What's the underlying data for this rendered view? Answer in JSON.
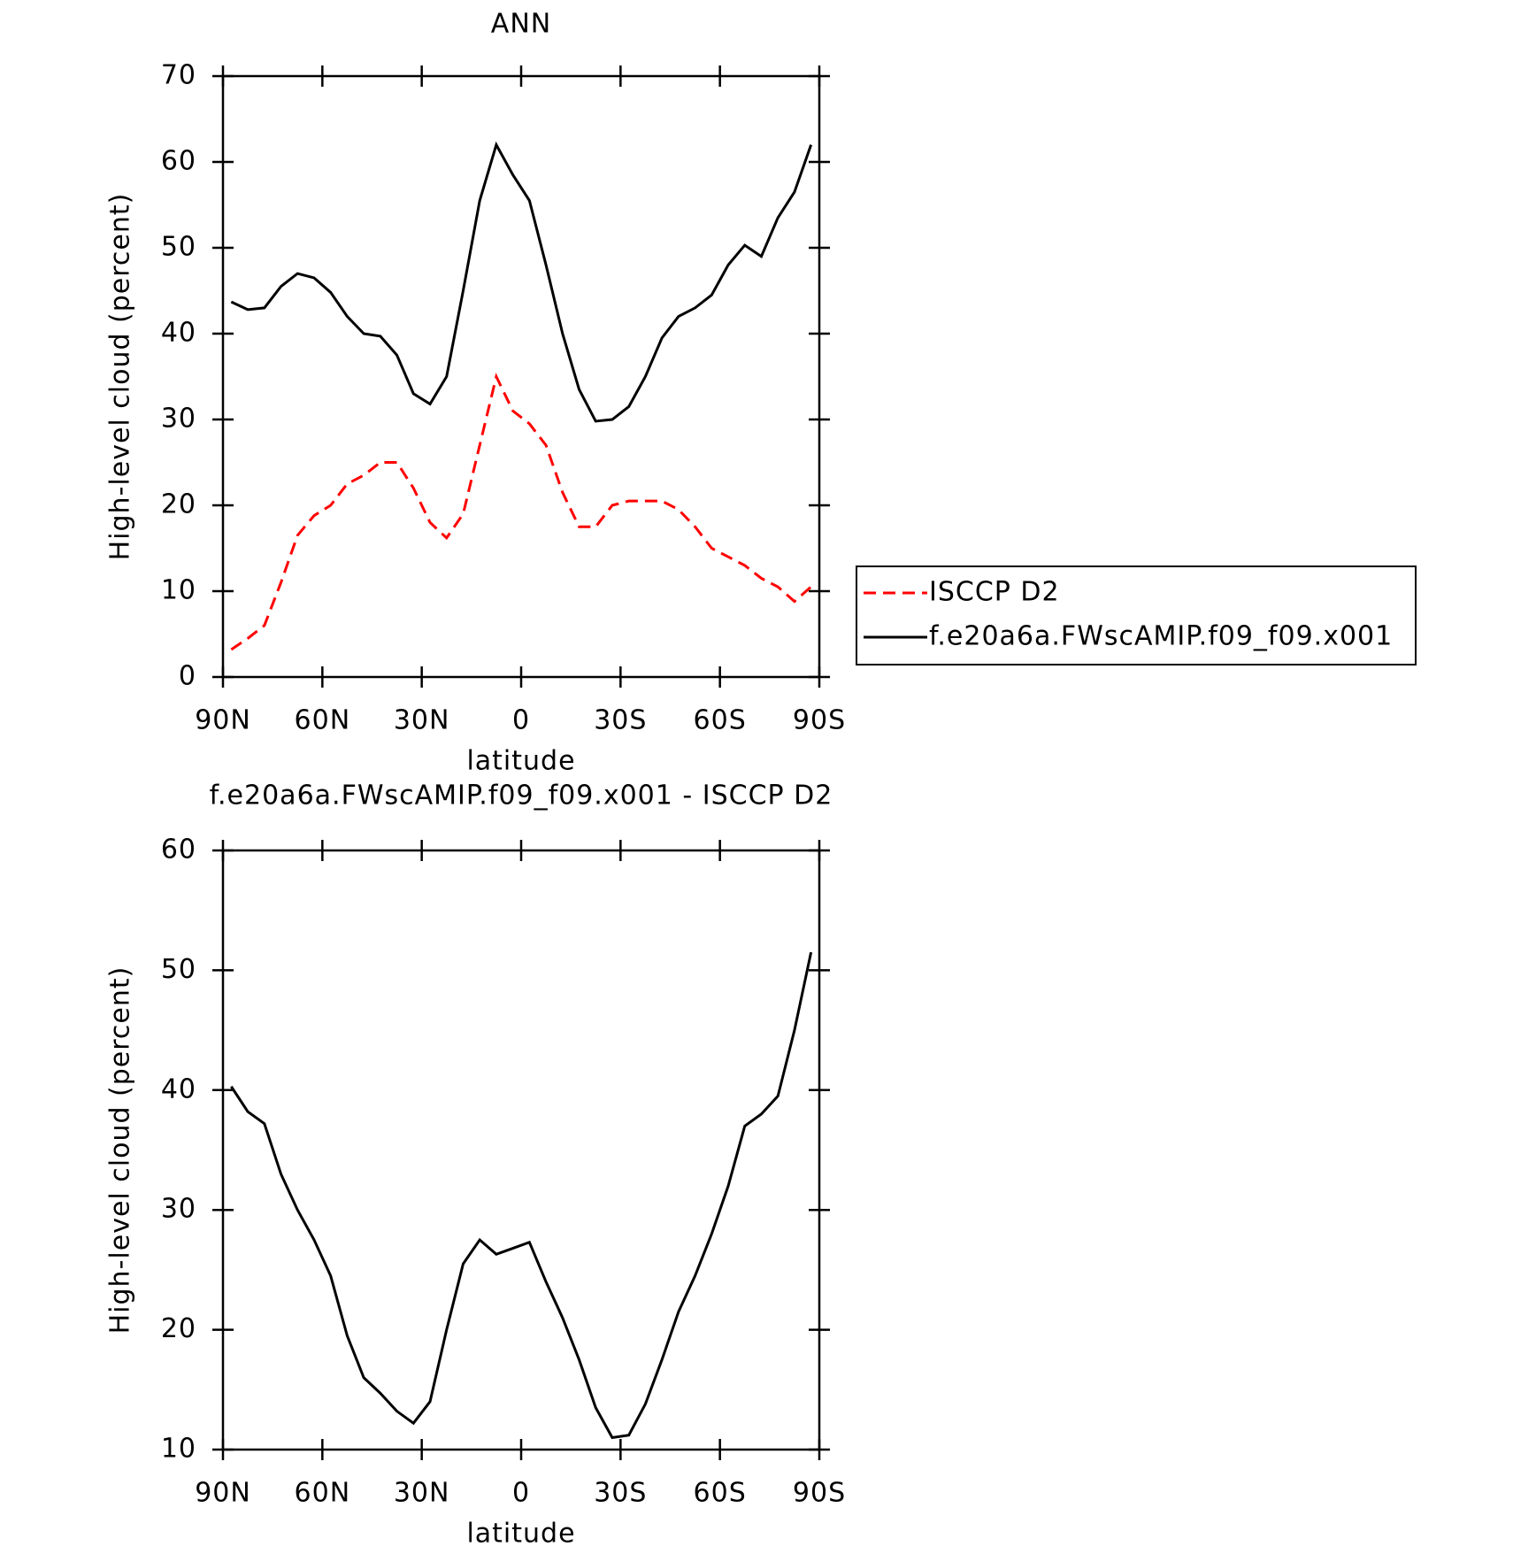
{
  "chart_data": [
    {
      "type": "line",
      "title": "ANN",
      "x_label": "latitude",
      "y_label": "High-level cloud (percent)",
      "x": [
        87.5,
        82.5,
        77.5,
        72.5,
        67.5,
        62.5,
        57.5,
        52.5,
        47.5,
        42.5,
        37.5,
        32.5,
        27.5,
        22.5,
        17.5,
        12.5,
        7.5,
        2.5,
        -2.5,
        -7.5,
        -12.5,
        -17.5,
        -22.5,
        -27.5,
        -32.5,
        -37.5,
        -42.5,
        -47.5,
        -52.5,
        -57.5,
        -62.5,
        -67.5,
        -72.5,
        -77.5,
        -82.5,
        -87.5
      ],
      "series": [
        {
          "name": "ISCCP D2",
          "color": "#ff0000",
          "dashed": true,
          "values": [
            3.2,
            4.5,
            6,
            11,
            16.5,
            18.8,
            20,
            22.5,
            23.5,
            25,
            25,
            22,
            18,
            16.2,
            19,
            27,
            35,
            31,
            29.5,
            27,
            21.5,
            17.5,
            17.5,
            20,
            20.5,
            20.5,
            20.5,
            19.5,
            17.5,
            15,
            14,
            13,
            11.5,
            10.5,
            8.8,
            10.5
          ]
        },
        {
          "name": "f.e20a6a.FWscAMIP.f09_f09.x001",
          "color": "#000000",
          "dashed": false,
          "values": [
            43.7,
            42.8,
            43,
            45.5,
            47,
            46.5,
            44.8,
            42,
            40,
            39.7,
            37.5,
            33,
            31.8,
            35,
            45,
            55.5,
            62,
            58.5,
            55.5,
            48,
            40,
            33.5,
            29.8,
            30,
            31.5,
            35,
            39.5,
            42,
            43,
            44.5,
            48,
            50.3,
            49,
            53.5,
            56.5,
            62
          ]
        }
      ],
      "xlim": [
        90,
        -90
      ],
      "xticks": [
        {
          "value": 90,
          "label": "90N"
        },
        {
          "value": 60,
          "label": "60N"
        },
        {
          "value": 30,
          "label": "30N"
        },
        0,
        {
          "value": -30,
          "label": "30S"
        },
        {
          "value": -60,
          "label": "60S"
        },
        {
          "value": -90,
          "label": "90S"
        }
      ],
      "ylim": [
        0,
        70
      ],
      "yticks": [
        0,
        10,
        20,
        30,
        40,
        50,
        60,
        70
      ],
      "legend": "right"
    },
    {
      "type": "line",
      "title": "f.e20a6a.FWscAMIP.f09_f09.x001 - ISCCP D2",
      "x_label": "latitude",
      "y_label": "High-level cloud (percent)",
      "x": [
        87.5,
        82.5,
        77.5,
        72.5,
        67.5,
        62.5,
        57.5,
        52.5,
        47.5,
        42.5,
        37.5,
        32.5,
        27.5,
        22.5,
        17.5,
        12.5,
        7.5,
        2.5,
        -2.5,
        -7.5,
        -12.5,
        -17.5,
        -22.5,
        -27.5,
        -32.5,
        -37.5,
        -42.5,
        -47.5,
        -52.5,
        -57.5,
        -62.5,
        -67.5,
        -72.5,
        -77.5,
        -82.5,
        -87.5
      ],
      "color": "#000000",
      "values": [
        40.3,
        38.2,
        37.2,
        33,
        30,
        27.5,
        24.5,
        19.5,
        16,
        14.7,
        13.2,
        12.2,
        14,
        20,
        25.5,
        27.5,
        26.3,
        26.8,
        27.3,
        24,
        21,
        17.5,
        13.5,
        11,
        11.2,
        13.8,
        17.5,
        21.5,
        24.5,
        28,
        32,
        37,
        38,
        39.5,
        45,
        51.5
      ],
      "xlim": [
        90,
        -90
      ],
      "xticks": [
        {
          "value": 90,
          "label": "90N"
        },
        {
          "value": 60,
          "label": "60N"
        },
        {
          "value": 30,
          "label": "30N"
        },
        0,
        {
          "value": -30,
          "label": "30S"
        },
        {
          "value": -60,
          "label": "60S"
        },
        {
          "value": -90,
          "label": "90S"
        }
      ],
      "ylim": [
        10,
        60
      ],
      "yticks": [
        10,
        20,
        30,
        40,
        50,
        60
      ]
    }
  ]
}
